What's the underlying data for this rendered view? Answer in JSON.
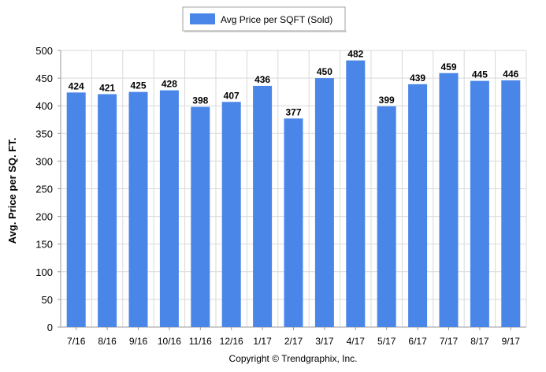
{
  "legend": {
    "label": "Avg Price per SQFT (Sold)"
  },
  "copyright": "Copyright © Trendgraphix, Inc.",
  "colors": {
    "bar": "#4a86e8",
    "grid": "#d9d9d9",
    "axis": "#999999",
    "text": "#000000"
  },
  "chart_data": {
    "type": "bar",
    "title": "",
    "xlabel": "",
    "ylabel": "Avg. Price per SQ. FT.",
    "ylim": [
      0,
      500
    ],
    "yticks": [
      0,
      50,
      100,
      150,
      200,
      250,
      300,
      350,
      400,
      450,
      500
    ],
    "grid": true,
    "legend_position": "top-center",
    "categories": [
      "7/16",
      "8/16",
      "9/16",
      "10/16",
      "11/16",
      "12/16",
      "1/17",
      "2/17",
      "3/17",
      "4/17",
      "5/17",
      "6/17",
      "7/17",
      "8/17",
      "9/17"
    ],
    "series": [
      {
        "name": "Avg Price per SQFT (Sold)",
        "values": [
          424,
          421,
          425,
          428,
          398,
          407,
          436,
          377,
          450,
          482,
          399,
          439,
          459,
          445,
          446
        ]
      }
    ]
  }
}
